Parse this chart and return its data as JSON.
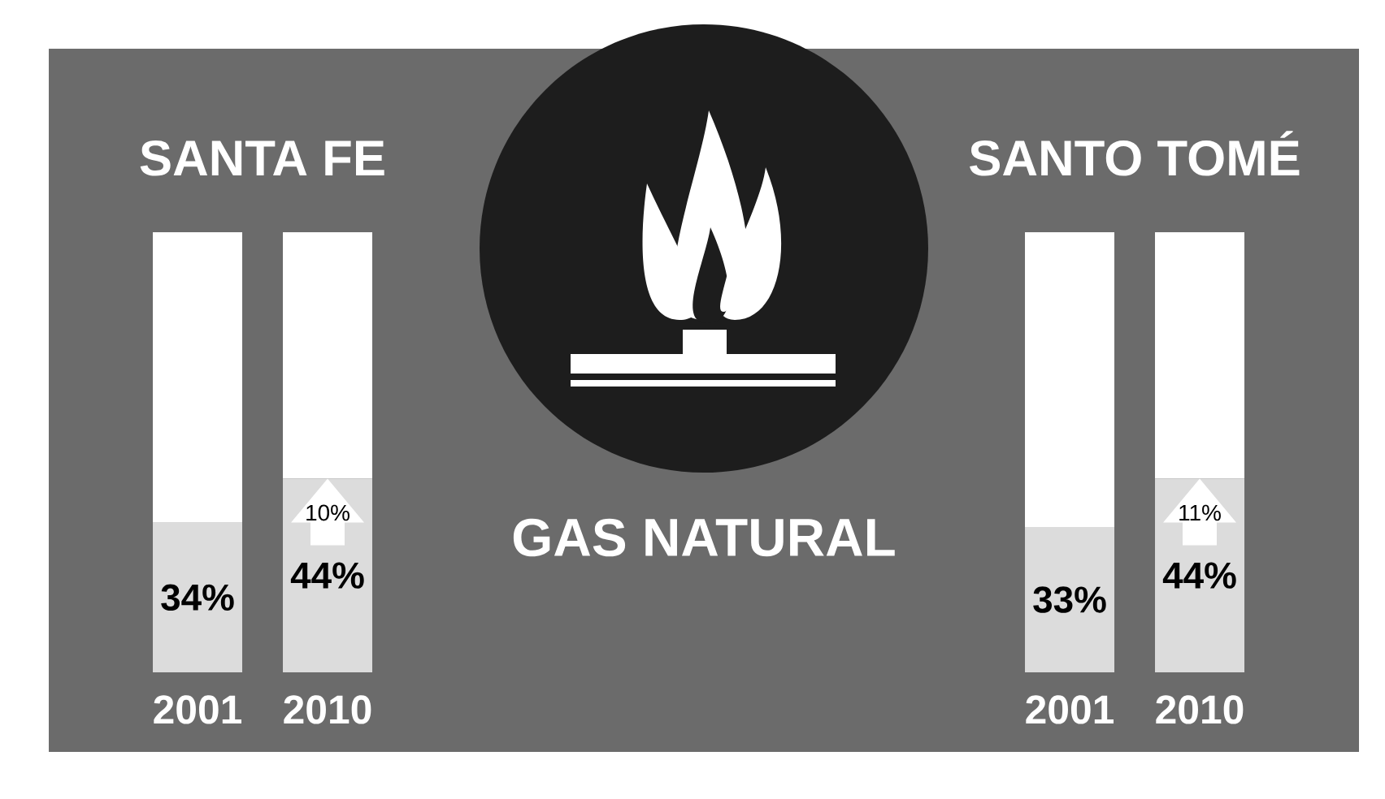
{
  "chart_data": [
    {
      "type": "bar",
      "title": "SANTA FE",
      "categories": [
        "2001",
        "2010"
      ],
      "stacked": true,
      "series": [
        {
          "color": "#dcdcdc",
          "values": [
            34,
            44
          ],
          "value_labels": [
            "34%",
            "44%"
          ]
        },
        {
          "color": "#ffffff",
          "values": [
            66,
            56
          ]
        }
      ],
      "annotations": [
        {
          "text": "10%",
          "x": "2010",
          "y": 44
        }
      ]
    },
    {
      "type": "other",
      "title": "GAS NATURAL"
    },
    {
      "type": "bar",
      "title": "SANTO TOMÉ",
      "categories": [
        "2001",
        "2010"
      ],
      "stacked": true,
      "series": [
        {
          "color": "#dcdcdc",
          "values": [
            33,
            44
          ],
          "value_labels": [
            "33%",
            "44%"
          ]
        },
        {
          "color": "#ffffff",
          "values": [
            67,
            56
          ]
        }
      ],
      "annotations": [
        {
          "text": "11%",
          "x": "2010",
          "y": 44
        }
      ]
    }
  ]
}
